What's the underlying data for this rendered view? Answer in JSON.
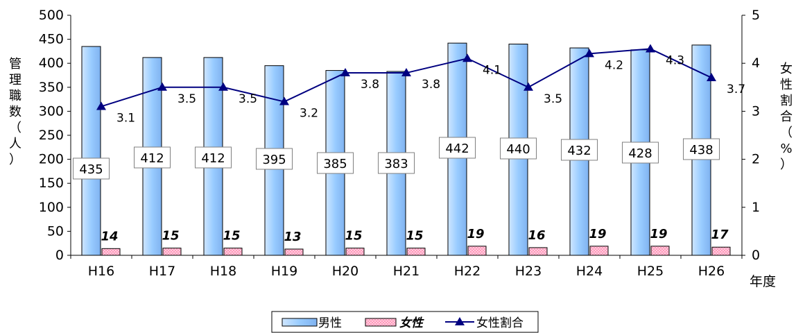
{
  "chart_data": {
    "type": "bar",
    "categories": [
      "H16",
      "H17",
      "H18",
      "H19",
      "H20",
      "H21",
      "H22",
      "H23",
      "H24",
      "H25",
      "H26"
    ],
    "series": [
      {
        "name": "男性",
        "kind": "bar",
        "axis": "left",
        "color": "#99ccff",
        "values": [
          435,
          412,
          412,
          395,
          385,
          383,
          442,
          440,
          432,
          428,
          438
        ]
      },
      {
        "name": "女性",
        "kind": "bar",
        "axis": "left",
        "color": "#ffccdd",
        "values": [
          14,
          15,
          15,
          13,
          15,
          15,
          19,
          16,
          19,
          19,
          17
        ]
      },
      {
        "name": "女性割合",
        "kind": "line",
        "axis": "right",
        "color": "#000080",
        "values": [
          3.1,
          3.5,
          3.5,
          3.2,
          3.8,
          3.8,
          4.1,
          3.5,
          4.2,
          4.3,
          3.7
        ]
      }
    ],
    "ylabel": "管理職数（人）",
    "y2label": "女性割合（%）",
    "xlabel": "年度",
    "ylim": [
      0,
      500
    ],
    "y2lim": [
      0,
      5
    ],
    "yticks": [
      0,
      50,
      100,
      150,
      200,
      250,
      300,
      350,
      400,
      450,
      500
    ],
    "y2ticks": [
      0,
      1,
      2,
      3,
      4,
      5
    ],
    "grid": false,
    "legend": "bottom"
  }
}
